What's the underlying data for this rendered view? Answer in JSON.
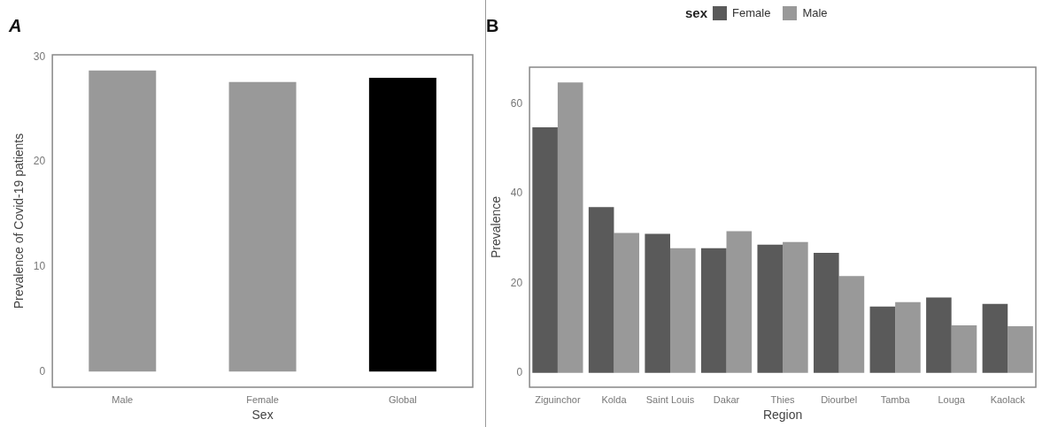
{
  "chart_data": [
    {
      "type": "bar",
      "title": "A",
      "xlabel": "Sex",
      "ylabel": "Prevalence of Covid-19 patients",
      "categories": [
        "Male",
        "Female",
        "Global"
      ],
      "values": [
        28.7,
        27.6,
        28.0
      ],
      "colors": [
        "#999999",
        "#999999",
        "#000000"
      ],
      "ylim": [
        -1.5,
        30.2
      ],
      "yticks": [
        0,
        10,
        20,
        30
      ],
      "grid": false,
      "legend": false
    },
    {
      "type": "bar",
      "title": "B",
      "xlabel": "Region",
      "ylabel": "Prevalence",
      "legend_title": "sex",
      "legend": "top",
      "grid": false,
      "categories": [
        "Ziguinchor",
        "Kolda",
        "Saint Louis",
        "Dakar",
        "Thies",
        "Diourbel",
        "Tamba",
        "Louga",
        "Kaolack"
      ],
      "ylim": [
        -3.2,
        68.2
      ],
      "yticks": [
        0,
        20,
        40,
        60
      ],
      "series": [
        {
          "name": "Female",
          "color": "#5a5a5a",
          "values": [
            54.8,
            37.0,
            31.0,
            27.8,
            28.6,
            26.8,
            14.8,
            16.8,
            15.4
          ]
        },
        {
          "name": "Male",
          "color": "#999999",
          "values": [
            64.8,
            31.2,
            27.8,
            31.6,
            29.2,
            21.6,
            15.8,
            10.6,
            10.4
          ]
        }
      ]
    }
  ]
}
